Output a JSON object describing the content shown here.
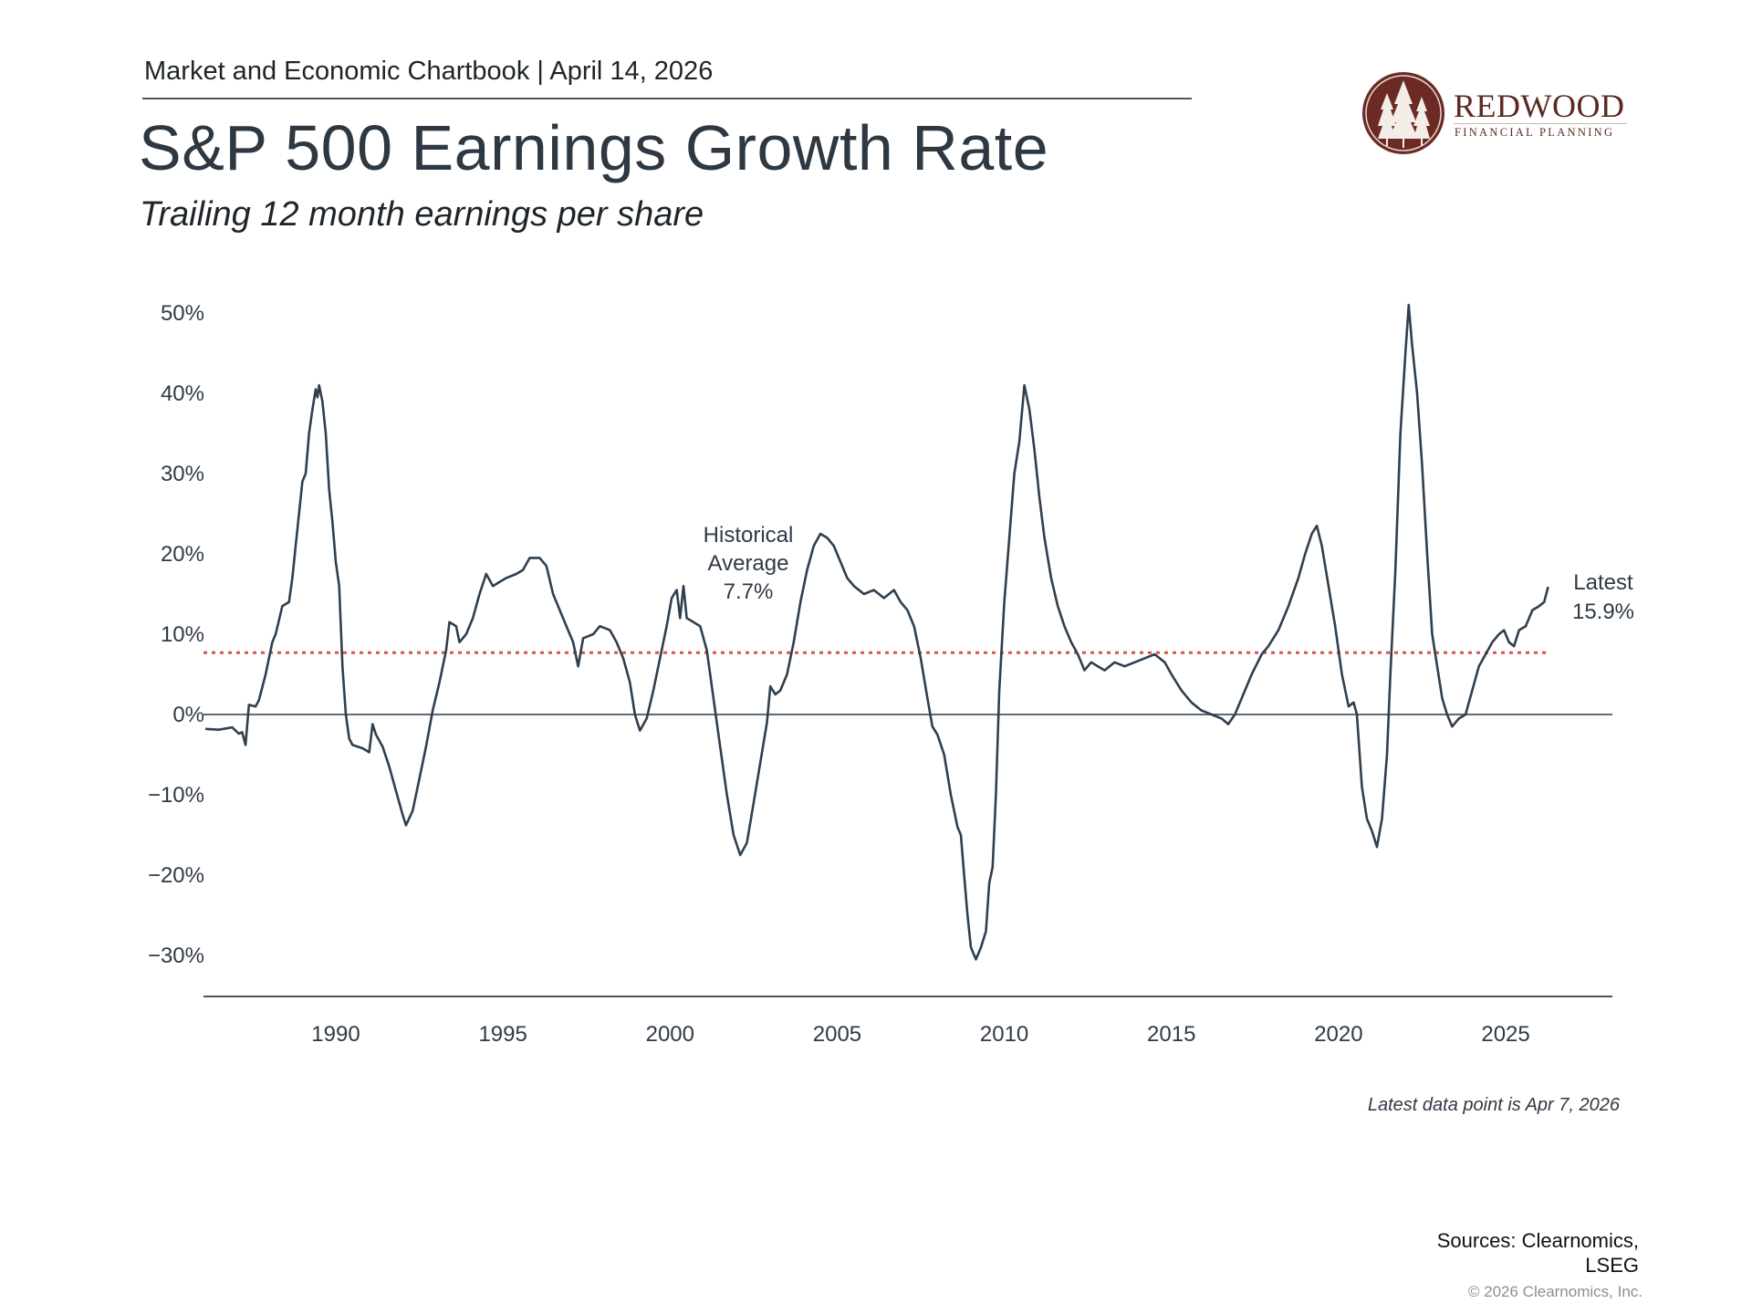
{
  "header": {
    "kicker": "Market and Economic Chartbook | April 14, 2026",
    "title": "S&P 500 Earnings Growth Rate",
    "subtitle": "Trailing 12 month earnings per share"
  },
  "logo": {
    "name": "REDWOOD",
    "tagline": "FINANCIAL PLANNING",
    "icon": "redwood-trees-icon",
    "color": "#6b2a24"
  },
  "footer": {
    "note": "Latest data point is Apr 7, 2026",
    "sources_line1": "Sources: Clearnomics,",
    "sources_line2": "LSEG",
    "copyright": "© 2026 Clearnomics, Inc."
  },
  "chart_data": {
    "type": "line",
    "title": "S&P 500 Earnings Growth Rate",
    "subtitle": "Trailing 12 month earnings per share",
    "xlabel": "",
    "ylabel": "",
    "xlim": [
      1986.05,
      2028.2
    ],
    "ylim": [
      -35,
      52
    ],
    "x_ticks": [
      1990,
      1995,
      2000,
      2005,
      2010,
      2015,
      2020,
      2025
    ],
    "x_tick_labels": [
      "1990",
      "1995",
      "2000",
      "2005",
      "2010",
      "2015",
      "2020",
      "2025"
    ],
    "y_ticks": [
      50,
      40,
      30,
      20,
      10,
      0,
      -10,
      -20,
      -30
    ],
    "y_tick_labels": [
      "50%",
      "40%",
      "30%",
      "20%",
      "10%",
      "0%",
      "−10%",
      "−20%",
      "−30%"
    ],
    "grid": false,
    "colors": {
      "line": "#2f3f4e",
      "average": "#d9534f",
      "zero": "#4a5560",
      "axis": "#4a5560"
    },
    "reference_line": {
      "label_lines": [
        "Historical",
        "Average",
        "7.7%"
      ],
      "value": 7.7
    },
    "latest_label": {
      "label_lines": [
        "Latest",
        "15.9%"
      ],
      "value": 15.9
    },
    "series": [
      {
        "name": "S&P 500 TTM EPS growth",
        "points": [
          [
            1986.1,
            -1.8
          ],
          [
            1986.5,
            -1.9
          ],
          [
            1986.9,
            -1.6
          ],
          [
            1987.1,
            -2.4
          ],
          [
            1987.2,
            -2.2
          ],
          [
            1987.3,
            -3.8
          ],
          [
            1987.4,
            1.2
          ],
          [
            1987.6,
            1.0
          ],
          [
            1987.7,
            1.8
          ],
          [
            1987.9,
            5
          ],
          [
            1988.1,
            9
          ],
          [
            1988.2,
            10
          ],
          [
            1988.4,
            13.5
          ],
          [
            1988.6,
            14
          ],
          [
            1988.7,
            17
          ],
          [
            1988.8,
            21
          ],
          [
            1988.9,
            25
          ],
          [
            1989.0,
            29
          ],
          [
            1989.1,
            30
          ],
          [
            1989.2,
            35
          ],
          [
            1989.3,
            38
          ],
          [
            1989.4,
            40.5
          ],
          [
            1989.45,
            39.5
          ],
          [
            1989.5,
            41
          ],
          [
            1989.6,
            39
          ],
          [
            1989.7,
            35
          ],
          [
            1989.8,
            28
          ],
          [
            1989.9,
            24
          ],
          [
            1990.0,
            19
          ],
          [
            1990.1,
            16
          ],
          [
            1990.2,
            6
          ],
          [
            1990.3,
            0
          ],
          [
            1990.4,
            -3
          ],
          [
            1990.5,
            -3.8
          ],
          [
            1990.8,
            -4.2
          ],
          [
            1991.0,
            -4.7
          ],
          [
            1991.1,
            -1.2
          ],
          [
            1991.2,
            -2.5
          ],
          [
            1991.4,
            -4
          ],
          [
            1991.6,
            -6.5
          ],
          [
            1991.8,
            -9.5
          ],
          [
            1992.0,
            -12.5
          ],
          [
            1992.1,
            -13.8
          ],
          [
            1992.3,
            -12
          ],
          [
            1992.5,
            -8
          ],
          [
            1992.7,
            -4
          ],
          [
            1992.9,
            0.5
          ],
          [
            1993.1,
            4
          ],
          [
            1993.3,
            8
          ],
          [
            1993.4,
            11.5
          ],
          [
            1993.6,
            11
          ],
          [
            1993.7,
            9
          ],
          [
            1993.9,
            10
          ],
          [
            1994.1,
            12
          ],
          [
            1994.3,
            15
          ],
          [
            1994.5,
            17.5
          ],
          [
            1994.7,
            16
          ],
          [
            1994.9,
            16.5
          ],
          [
            1995.1,
            17
          ],
          [
            1995.4,
            17.5
          ],
          [
            1995.6,
            18
          ],
          [
            1995.8,
            19.5
          ],
          [
            1996.1,
            19.5
          ],
          [
            1996.3,
            18.5
          ],
          [
            1996.5,
            15
          ],
          [
            1996.7,
            13
          ],
          [
            1996.9,
            11
          ],
          [
            1997.1,
            9
          ],
          [
            1997.25,
            6
          ],
          [
            1997.4,
            9.5
          ],
          [
            1997.7,
            10
          ],
          [
            1997.9,
            11
          ],
          [
            1998.2,
            10.5
          ],
          [
            1998.4,
            9
          ],
          [
            1998.6,
            7
          ],
          [
            1998.8,
            4
          ],
          [
            1998.95,
            0
          ],
          [
            1999.1,
            -2
          ],
          [
            1999.3,
            -0.5
          ],
          [
            1999.5,
            3
          ],
          [
            1999.7,
            7
          ],
          [
            1999.9,
            11
          ],
          [
            2000.05,
            14.5
          ],
          [
            2000.2,
            15.5
          ],
          [
            2000.3,
            12
          ],
          [
            2000.4,
            16
          ],
          [
            2000.5,
            12
          ],
          [
            2000.7,
            11.5
          ],
          [
            2000.9,
            11
          ],
          [
            2001.1,
            8
          ],
          [
            2001.3,
            2
          ],
          [
            2001.5,
            -4
          ],
          [
            2001.7,
            -10
          ],
          [
            2001.9,
            -15
          ],
          [
            2002.1,
            -17.5
          ],
          [
            2002.3,
            -16
          ],
          [
            2002.5,
            -11
          ],
          [
            2002.7,
            -6
          ],
          [
            2002.9,
            -1
          ],
          [
            2003.0,
            3.5
          ],
          [
            2003.15,
            2.5
          ],
          [
            2003.3,
            3
          ],
          [
            2003.5,
            5
          ],
          [
            2003.7,
            9
          ],
          [
            2003.9,
            14
          ],
          [
            2004.1,
            18
          ],
          [
            2004.3,
            21
          ],
          [
            2004.5,
            22.5
          ],
          [
            2004.7,
            22
          ],
          [
            2004.9,
            21
          ],
          [
            2005.1,
            19
          ],
          [
            2005.3,
            17
          ],
          [
            2005.5,
            16
          ],
          [
            2005.8,
            15
          ],
          [
            2006.1,
            15.5
          ],
          [
            2006.4,
            14.5
          ],
          [
            2006.7,
            15.5
          ],
          [
            2006.9,
            14
          ],
          [
            2007.1,
            13
          ],
          [
            2007.3,
            11
          ],
          [
            2007.5,
            7
          ],
          [
            2007.7,
            2
          ],
          [
            2007.85,
            -1.5
          ],
          [
            2008.0,
            -2.5
          ],
          [
            2008.2,
            -5
          ],
          [
            2008.4,
            -10
          ],
          [
            2008.6,
            -14
          ],
          [
            2008.7,
            -15
          ],
          [
            2008.8,
            -20
          ],
          [
            2008.9,
            -25
          ],
          [
            2009.0,
            -29
          ],
          [
            2009.15,
            -30.5
          ],
          [
            2009.3,
            -29
          ],
          [
            2009.45,
            -27
          ],
          [
            2009.55,
            -21
          ],
          [
            2009.65,
            -19
          ],
          [
            2009.75,
            -10
          ],
          [
            2009.85,
            3
          ],
          [
            2010.0,
            14
          ],
          [
            2010.15,
            22
          ],
          [
            2010.3,
            30
          ],
          [
            2010.45,
            34
          ],
          [
            2010.6,
            41
          ],
          [
            2010.75,
            38
          ],
          [
            2010.9,
            33
          ],
          [
            2011.05,
            27
          ],
          [
            2011.2,
            22
          ],
          [
            2011.4,
            17
          ],
          [
            2011.6,
            13.5
          ],
          [
            2011.8,
            11
          ],
          [
            2012.0,
            9
          ],
          [
            2012.2,
            7.5
          ],
          [
            2012.4,
            5.5
          ],
          [
            2012.6,
            6.5
          ],
          [
            2012.8,
            6
          ],
          [
            2013.0,
            5.5
          ],
          [
            2013.3,
            6.5
          ],
          [
            2013.6,
            6
          ],
          [
            2013.9,
            6.5
          ],
          [
            2014.2,
            7
          ],
          [
            2014.5,
            7.5
          ],
          [
            2014.8,
            6.5
          ],
          [
            2015.0,
            5
          ],
          [
            2015.3,
            3
          ],
          [
            2015.6,
            1.5
          ],
          [
            2015.9,
            0.5
          ],
          [
            2016.2,
            0
          ],
          [
            2016.5,
            -0.5
          ],
          [
            2016.7,
            -1.2
          ],
          [
            2016.9,
            0
          ],
          [
            2017.1,
            2
          ],
          [
            2017.4,
            5
          ],
          [
            2017.7,
            7.5
          ],
          [
            2017.9,
            8.5
          ],
          [
            2018.2,
            10.5
          ],
          [
            2018.5,
            13.5
          ],
          [
            2018.8,
            17
          ],
          [
            2019.0,
            20
          ],
          [
            2019.2,
            22.5
          ],
          [
            2019.35,
            23.5
          ],
          [
            2019.5,
            21
          ],
          [
            2019.7,
            16
          ],
          [
            2019.9,
            11
          ],
          [
            2020.1,
            5
          ],
          [
            2020.3,
            1
          ],
          [
            2020.45,
            1.5
          ],
          [
            2020.55,
            0
          ],
          [
            2020.7,
            -9
          ],
          [
            2020.85,
            -13
          ],
          [
            2021.0,
            -14.5
          ],
          [
            2021.15,
            -16.5
          ],
          [
            2021.3,
            -13
          ],
          [
            2021.45,
            -5
          ],
          [
            2021.55,
            5
          ],
          [
            2021.7,
            18
          ],
          [
            2021.85,
            35
          ],
          [
            2022.0,
            45
          ],
          [
            2022.1,
            51
          ],
          [
            2022.2,
            46
          ],
          [
            2022.35,
            40
          ],
          [
            2022.5,
            31
          ],
          [
            2022.65,
            20
          ],
          [
            2022.8,
            10
          ],
          [
            2022.95,
            6
          ],
          [
            2023.1,
            2
          ],
          [
            2023.25,
            0
          ],
          [
            2023.4,
            -1.5
          ],
          [
            2023.6,
            -0.5
          ],
          [
            2023.8,
            0
          ],
          [
            2024.0,
            3
          ],
          [
            2024.2,
            6
          ],
          [
            2024.4,
            7.5
          ],
          [
            2024.6,
            9
          ],
          [
            2024.8,
            10
          ],
          [
            2024.95,
            10.5
          ],
          [
            2025.1,
            9
          ],
          [
            2025.25,
            8.5
          ],
          [
            2025.4,
            10.5
          ],
          [
            2025.6,
            11
          ],
          [
            2025.8,
            13
          ],
          [
            2026.0,
            13.5
          ],
          [
            2026.15,
            14
          ],
          [
            2026.27,
            15.9
          ]
        ]
      }
    ]
  }
}
